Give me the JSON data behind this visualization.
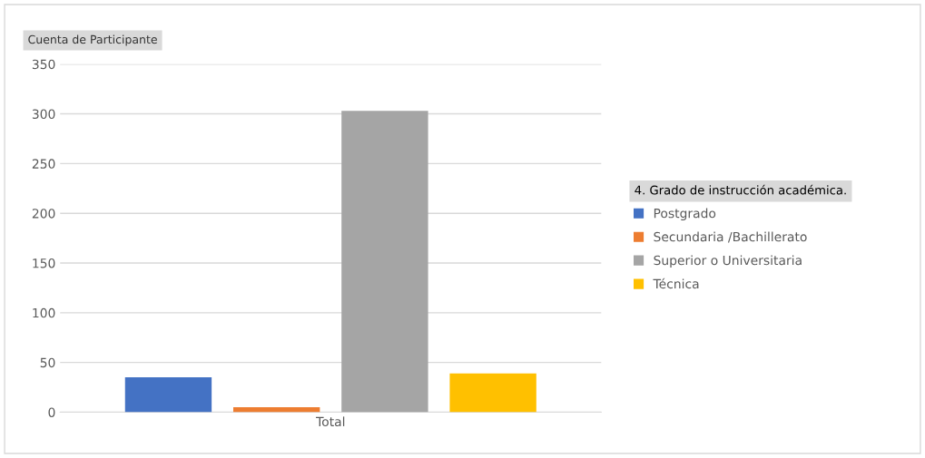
{
  "chart_data": {
    "type": "bar",
    "ylabel": "Cuenta de Participante",
    "legend_title": "4. Grado de instrucción académica.",
    "categories": [
      "Total"
    ],
    "series": [
      {
        "name": "Postgrado",
        "color": "#4472c4",
        "values": [
          35
        ]
      },
      {
        "name": "Secundaria /Bachillerato",
        "color": "#ed7d31",
        "values": [
          5
        ]
      },
      {
        "name": "Superior o Universitaria",
        "color": "#a5a5a5",
        "values": [
          303
        ]
      },
      {
        "name": "Técnica",
        "color": "#ffc000",
        "values": [
          39
        ]
      }
    ],
    "ylim": [
      0,
      350
    ],
    "yticks": [
      0,
      50,
      100,
      150,
      200,
      250,
      300,
      350
    ],
    "grid": "y",
    "legend": "right"
  }
}
